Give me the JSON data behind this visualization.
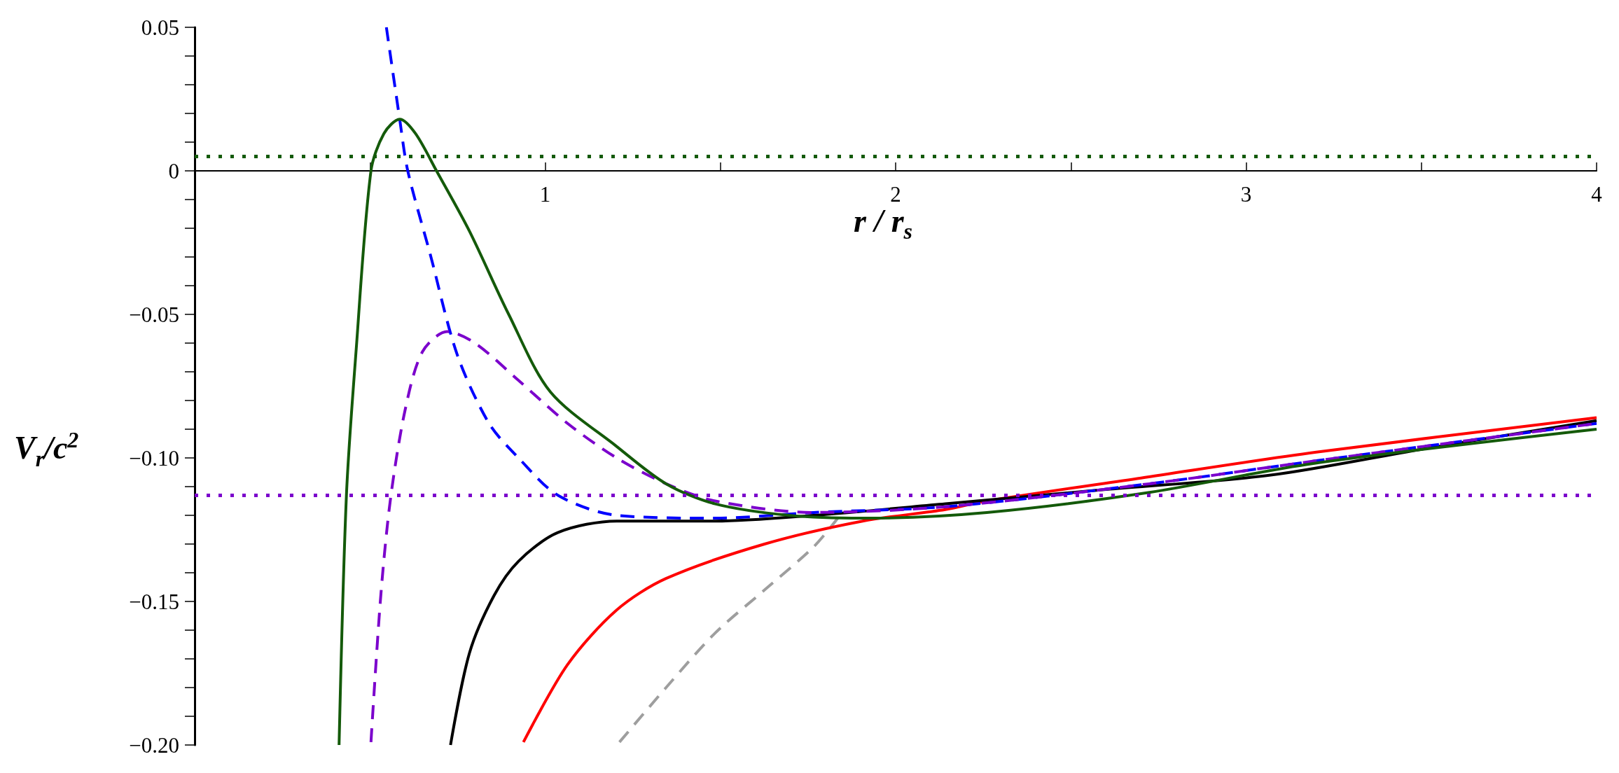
{
  "chart_data": {
    "type": "line",
    "xlabel": "r / r$_{s}$",
    "ylabel": "V$_{r}$/c$^{2}$",
    "xlim": [
      0,
      4
    ],
    "ylim": [
      -0.2,
      0.05
    ],
    "xticks": [
      {
        "value": 0.5,
        "label": null
      },
      1,
      {
        "value": 1.5,
        "label": null
      },
      2,
      {
        "value": 2.5,
        "label": null
      },
      3,
      {
        "value": 3.5,
        "label": null
      },
      4
    ],
    "yticks": [
      {
        "value": -0.2,
        "label": "−0.20"
      },
      {
        "value": -0.19,
        "label": null
      },
      {
        "value": -0.18,
        "label": null
      },
      {
        "value": -0.17,
        "label": null
      },
      {
        "value": -0.16,
        "label": null
      },
      {
        "value": -0.15,
        "label": "−0.15"
      },
      {
        "value": -0.14,
        "label": null
      },
      {
        "value": -0.13,
        "label": null
      },
      {
        "value": -0.12,
        "label": null
      },
      {
        "value": -0.11,
        "label": null
      },
      {
        "value": -0.1,
        "label": "−0.10"
      },
      {
        "value": -0.09,
        "label": null
      },
      {
        "value": -0.08,
        "label": null
      },
      {
        "value": -0.07,
        "label": null
      },
      {
        "value": -0.06,
        "label": null
      },
      {
        "value": -0.05,
        "label": "−0.05"
      },
      {
        "value": -0.04,
        "label": null
      },
      {
        "value": -0.03,
        "label": null
      },
      {
        "value": -0.02,
        "label": null
      },
      {
        "value": -0.01,
        "label": null
      },
      0,
      {
        "value": 0.01,
        "label": null
      },
      {
        "value": 0.02,
        "label": null
      },
      {
        "value": 0.03,
        "label": null
      },
      {
        "value": 0.04,
        "label": null
      },
      0.05
    ],
    "grid": false,
    "marker": "none",
    "series": [
      {
        "color": "#9e9e9e",
        "line_style": "dashed",
        "x": [
          1.212,
          1.345,
          1.485,
          1.626,
          1.766,
          1.835
        ],
        "values": [
          -0.199,
          -0.18,
          -0.161,
          -0.146,
          -0.131,
          -0.121
        ]
      },
      {
        "color": "#ff0000",
        "line_style": "solid",
        "x": [
          0.938,
          1.064,
          1.204,
          1.345,
          1.626,
          1.906,
          2.142,
          2.26,
          2.7,
          3.2,
          4.0
        ],
        "values": [
          -0.199,
          -0.172,
          -0.153,
          -0.142,
          -0.13,
          -0.122,
          -0.118,
          -0.115,
          -0.107,
          -0.098,
          -0.086
        ]
      },
      {
        "color": "#000000",
        "line_style": "solid",
        "x": [
          0.73,
          0.784,
          0.854,
          0.924,
          1.036,
          1.204,
          1.486,
          1.766,
          2.142,
          2.6,
          3.07,
          3.5,
          4.0
        ],
        "values": [
          -0.2,
          -0.168,
          -0.148,
          -0.136,
          -0.126,
          -0.122,
          -0.122,
          -0.12,
          -0.116,
          -0.111,
          -0.106,
          -0.097,
          -0.087
        ]
      },
      {
        "color": "#0000ff",
        "line_style": "dashed",
        "x": [
          0.547,
          0.585,
          0.608,
          0.672,
          0.749,
          0.84,
          0.924,
          1.036,
          1.204,
          1.485,
          1.766,
          2.142,
          2.724,
          3.2,
          4.0
        ],
        "values": [
          0.05,
          0.018,
          0.0,
          -0.029,
          -0.064,
          -0.088,
          -0.1,
          -0.113,
          -0.12,
          -0.121,
          -0.119,
          -0.117,
          -0.109,
          -0.101,
          -0.088
        ]
      },
      {
        "color": "#7b00cc",
        "line_style": "dashed",
        "x": [
          0.503,
          0.531,
          0.559,
          0.601,
          0.65,
          0.721,
          0.8,
          0.924,
          1.064,
          1.204,
          1.345,
          1.485,
          1.766,
          2.142,
          2.724,
          3.2,
          4.0
        ],
        "values": [
          -0.199,
          -0.148,
          -0.114,
          -0.083,
          -0.063,
          -0.056,
          -0.06,
          -0.073,
          -0.088,
          -0.1,
          -0.109,
          -0.115,
          -0.119,
          -0.117,
          -0.109,
          -0.101,
          -0.088
        ]
      },
      {
        "color": "#145a0a",
        "line_style": "solid",
        "x": [
          0.412,
          0.433,
          0.461,
          0.503,
          0.54,
          0.585,
          0.63,
          0.69,
          0.784,
          0.896,
          1.015,
          1.204,
          1.345,
          1.485,
          1.696,
          1.906,
          2.26,
          2.724,
          3.188,
          4.0
        ],
        "values": [
          -0.2,
          -0.113,
          -0.062,
          0.0,
          0.013,
          0.018,
          0.013,
          0.0,
          -0.021,
          -0.05,
          -0.077,
          -0.096,
          -0.109,
          -0.116,
          -0.12,
          -0.121,
          -0.119,
          -0.112,
          -0.102,
          -0.09
        ]
      }
    ],
    "ref_lines": [
      {
        "axis": "y",
        "value": 0.005,
        "color": "#145a0a",
        "line_style": "dotted"
      },
      {
        "axis": "y",
        "value": -0.113,
        "color": "#7b00cc",
        "line_style": "dotted"
      }
    ]
  }
}
